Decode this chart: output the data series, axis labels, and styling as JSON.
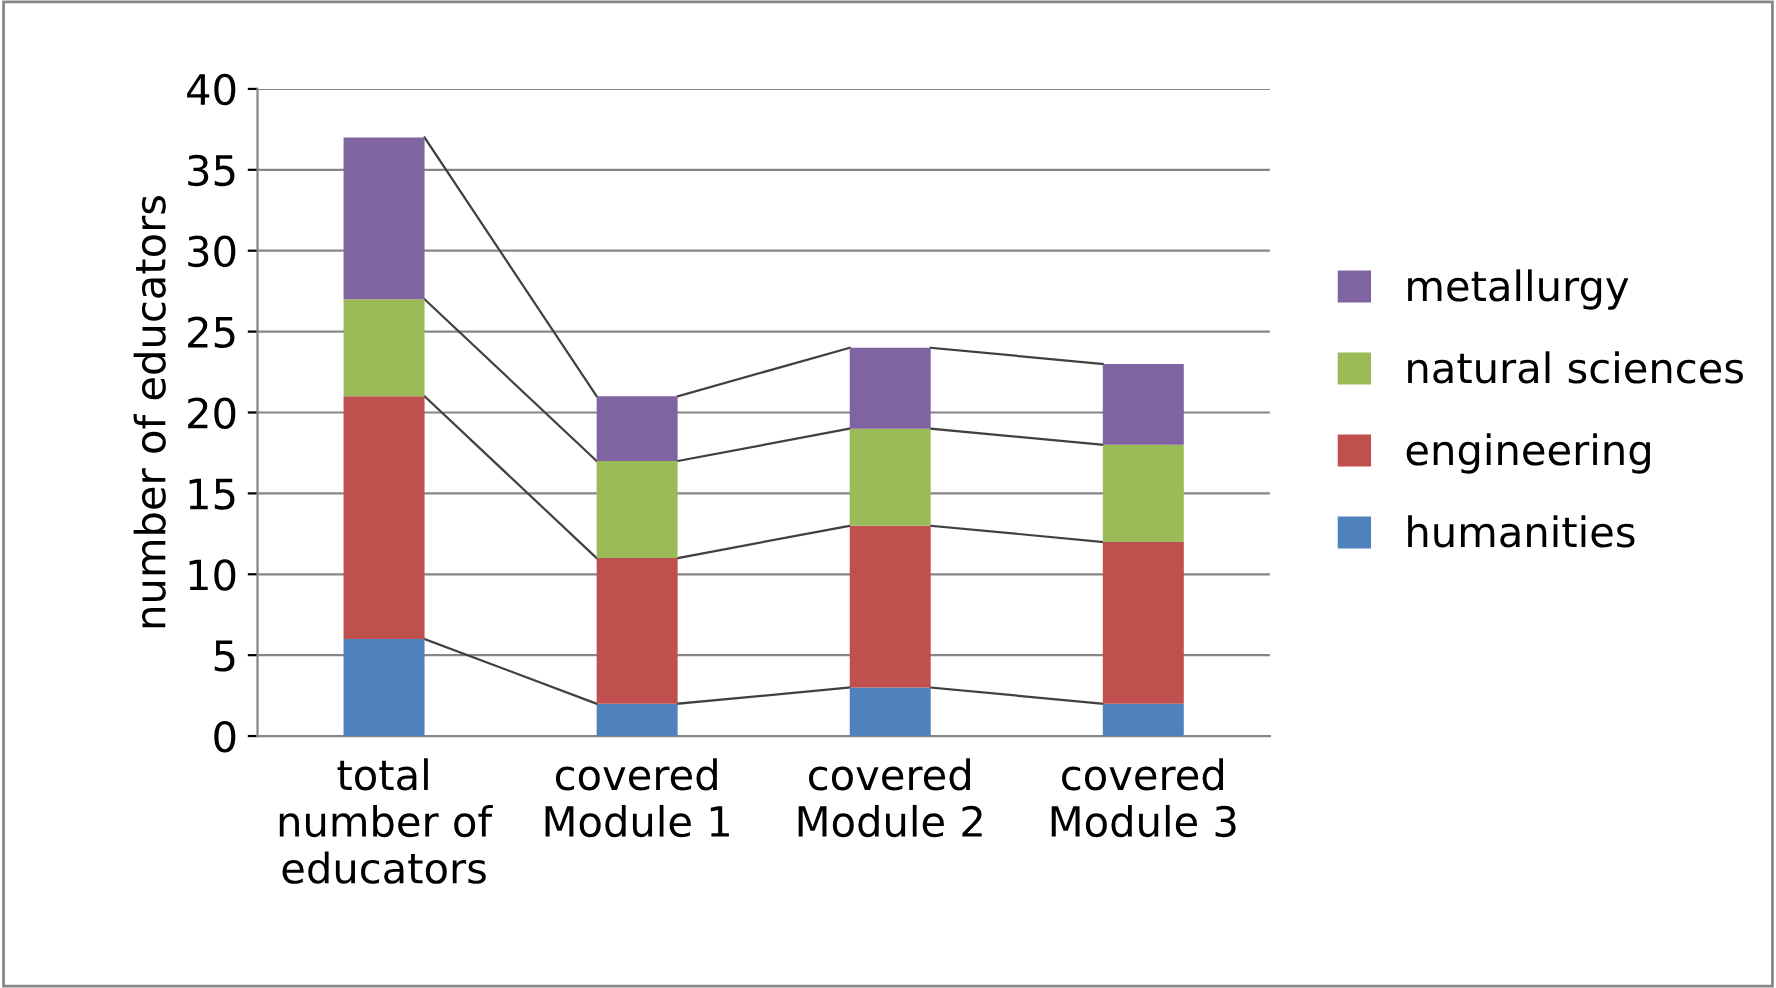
{
  "chart_data": {
    "type": "bar",
    "stacked": true,
    "ylabel": "number of educators",
    "categories": [
      "total\nnumber of\neducators",
      "covered\nModule 1",
      "covered\nModule 2",
      "covered\nModule 3"
    ],
    "series": [
      {
        "name": "humanities",
        "color": "#4f81bd",
        "values": [
          6,
          2,
          3,
          2
        ]
      },
      {
        "name": "engineering",
        "color": "#c0504d",
        "values": [
          15,
          9,
          10,
          10
        ]
      },
      {
        "name": "natural sciences",
        "color": "#9bbb59",
        "values": [
          6,
          6,
          6,
          6
        ]
      },
      {
        "name": "metallurgy",
        "color": "#8064a2",
        "values": [
          10,
          4,
          5,
          5
        ]
      }
    ],
    "ylim": [
      0,
      40
    ],
    "yticks": [
      0,
      5,
      10,
      15,
      20,
      25,
      30,
      35,
      40
    ],
    "grid": "y",
    "legend": "right"
  }
}
